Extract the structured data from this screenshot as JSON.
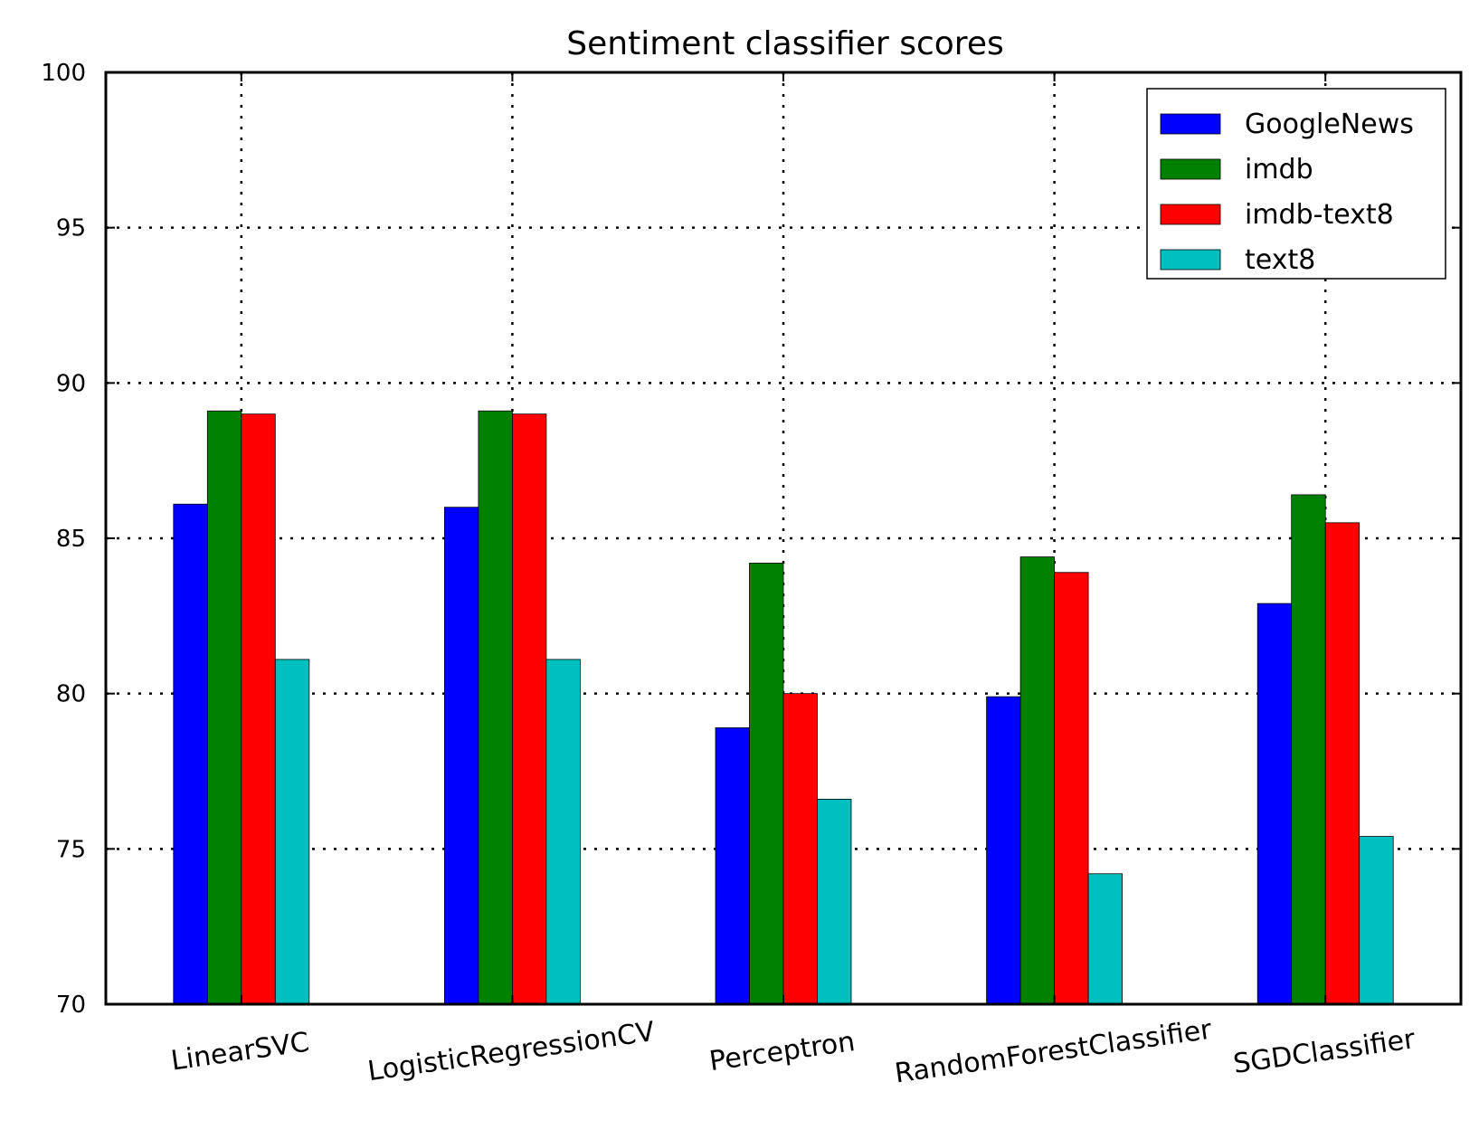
{
  "chart_data": {
    "type": "bar",
    "title": "Sentiment classifier scores",
    "categories": [
      "LinearSVC",
      "LogisticRegressionCV",
      "Perceptron",
      "RandomForestClassifier",
      "SGDClassifier"
    ],
    "series": [
      {
        "name": "GoogleNews",
        "color": "#0000ff",
        "values": [
          86.1,
          86.0,
          78.9,
          79.9,
          82.9
        ]
      },
      {
        "name": "imdb",
        "color": "#008000",
        "values": [
          89.1,
          89.1,
          84.2,
          84.4,
          86.4
        ]
      },
      {
        "name": "imdb-text8",
        "color": "#ff0000",
        "values": [
          89.0,
          89.0,
          80.0,
          83.9,
          85.5
        ]
      },
      {
        "name": "text8",
        "color": "#00bfbf",
        "values": [
          81.1,
          81.1,
          76.6,
          74.2,
          75.4
        ]
      }
    ],
    "ylim": [
      70,
      100
    ],
    "yticks": [
      "70",
      "75",
      "80",
      "85",
      "90",
      "95",
      "100"
    ],
    "xlabel": "",
    "ylabel": "",
    "grid": true,
    "legend": "top-right"
  }
}
